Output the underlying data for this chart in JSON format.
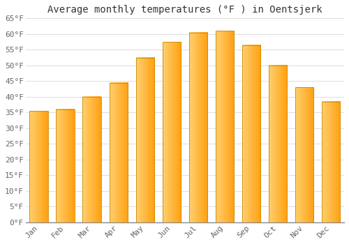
{
  "title": "Average monthly temperatures (°F ) in Oentsjerk",
  "months": [
    "Jan",
    "Feb",
    "Mar",
    "Apr",
    "May",
    "Jun",
    "Jul",
    "Aug",
    "Sep",
    "Oct",
    "Nov",
    "Dec"
  ],
  "values": [
    35.5,
    36.0,
    40.0,
    44.5,
    52.5,
    57.5,
    60.5,
    61.0,
    56.5,
    50.0,
    43.0,
    38.5
  ],
  "bar_color_left": "#FFD070",
  "bar_color_right": "#FFA010",
  "bar_color_edge": "#CC8800",
  "ylim": [
    0,
    65
  ],
  "yticks": [
    0,
    5,
    10,
    15,
    20,
    25,
    30,
    35,
    40,
    45,
    50,
    55,
    60,
    65
  ],
  "ytick_labels": [
    "0°F",
    "5°F",
    "10°F",
    "15°F",
    "20°F",
    "25°F",
    "30°F",
    "35°F",
    "40°F",
    "45°F",
    "50°F",
    "55°F",
    "60°F",
    "65°F"
  ],
  "background_color": "#FFFFFF",
  "plot_bg_color": "#FFFFFF",
  "grid_color": "#DDDDDD",
  "title_fontsize": 10,
  "tick_fontsize": 8,
  "font_family": "monospace",
  "bar_width": 0.7
}
